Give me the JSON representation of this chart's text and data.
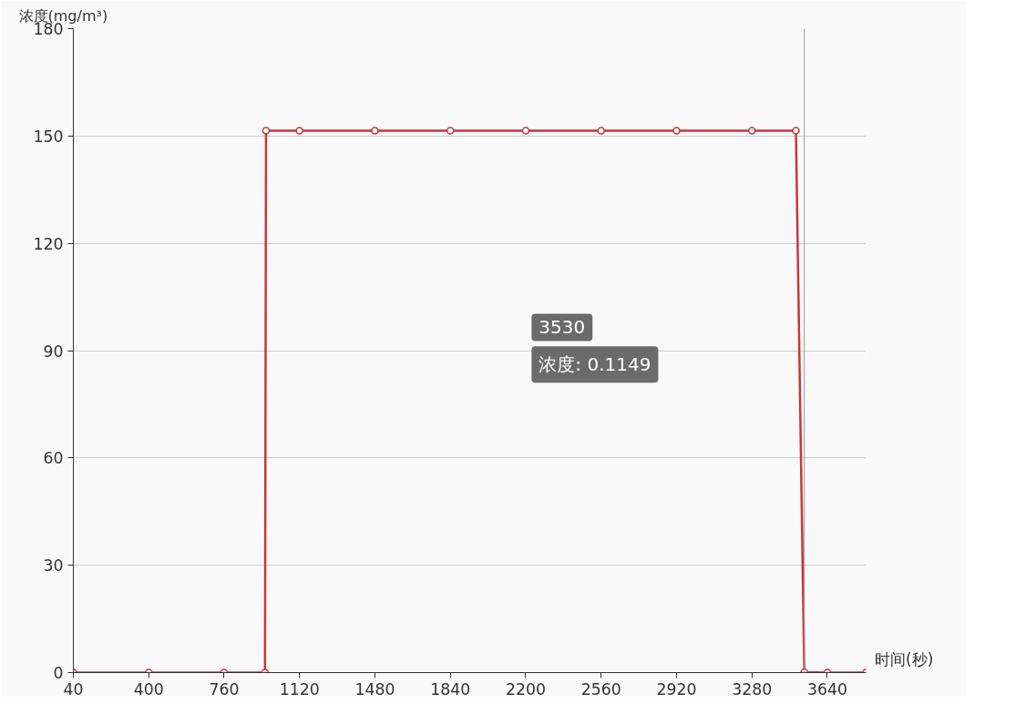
{
  "chart_data": {
    "type": "line",
    "xlabel": "时间(秒)",
    "ylabel": "浓度(mg/m³)",
    "series": [
      {
        "color": "#c9353a",
        "x": [
          40,
          400,
          760,
          955,
          960,
          1120,
          1480,
          1840,
          2200,
          2560,
          2920,
          3280,
          3490,
          3530,
          3640,
          3825
        ],
        "values": [
          0,
          0,
          0,
          0,
          151.5,
          151.5,
          151.5,
          151.5,
          151.5,
          151.5,
          151.5,
          151.5,
          151.5,
          0.1149,
          0,
          0
        ]
      }
    ],
    "xlim": [
      40,
      3825
    ],
    "xticks": [
      40,
      400,
      760,
      1120,
      1480,
      1840,
      2200,
      2560,
      2920,
      3280,
      3640
    ],
    "ylim": [
      0,
      180
    ],
    "yticks": [
      0,
      30,
      60,
      90,
      120,
      150,
      180
    ],
    "grid": "y",
    "marker": "circle",
    "line_style": "solid",
    "ref_lines": [
      {
        "axis": "x",
        "value": 3530,
        "label": null,
        "color": "#999999"
      }
    ],
    "annotations": [
      "3530",
      "浓度: 0.1149"
    ]
  }
}
